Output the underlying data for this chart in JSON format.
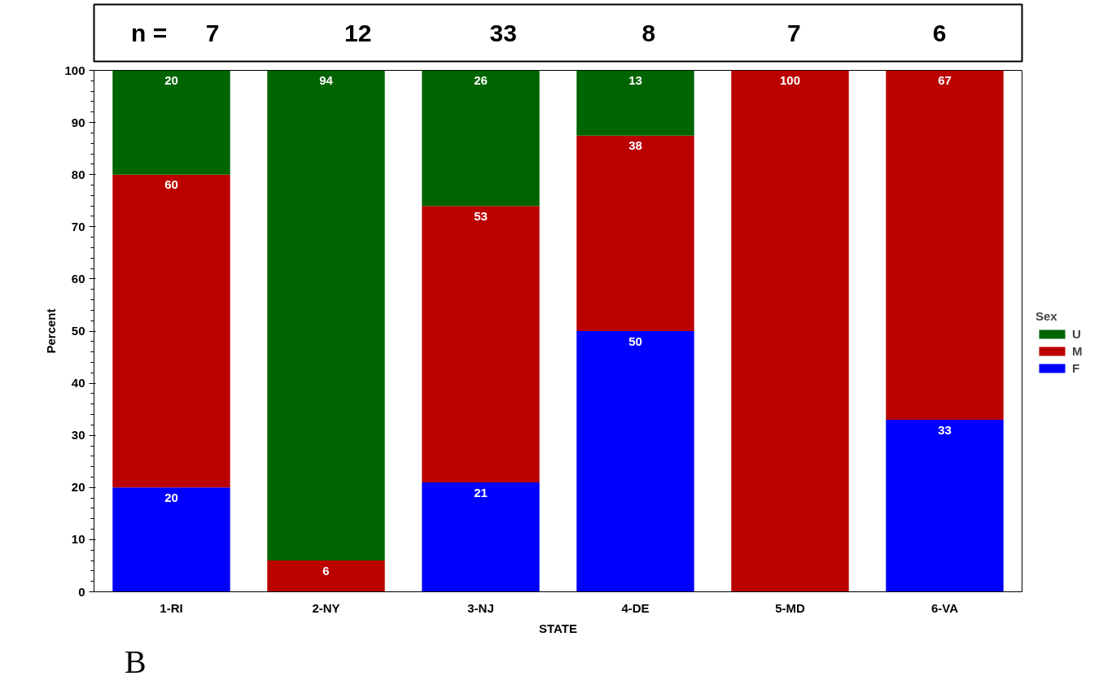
{
  "chart_data": {
    "type": "bar",
    "stacked": true,
    "categories": [
      "1-RI",
      "2-NY",
      "3-NJ",
      "4-DE",
      "5-MD",
      "6-VA"
    ],
    "series": [
      {
        "name": "F",
        "color": "#0000ff",
        "values": [
          20,
          0,
          21,
          50,
          0,
          33
        ],
        "value_labels": [
          "20",
          null,
          "21",
          "50",
          null,
          "33"
        ]
      },
      {
        "name": "M",
        "color": "#bb0000",
        "values": [
          60,
          6,
          53,
          37.5,
          100,
          67
        ],
        "value_labels": [
          "60",
          "6",
          "53",
          "38",
          "100",
          "67"
        ]
      },
      {
        "name": "U",
        "color": "#006400",
        "values": [
          20,
          94,
          26,
          12.5,
          0,
          0
        ],
        "value_labels": [
          "20",
          "94",
          "26",
          "13",
          null,
          null
        ]
      }
    ],
    "xlabel": "STATE",
    "ylabel": "Percent",
    "legend_title": "Sex",
    "legend": "right",
    "ylim": [
      0,
      100
    ],
    "yticks": [
      0,
      10,
      20,
      30,
      40,
      50,
      60,
      70,
      80,
      90,
      100
    ],
    "grid": false,
    "annotations": [
      "n =",
      "7",
      "12",
      "33",
      "8",
      "7",
      "6",
      "B"
    ]
  }
}
